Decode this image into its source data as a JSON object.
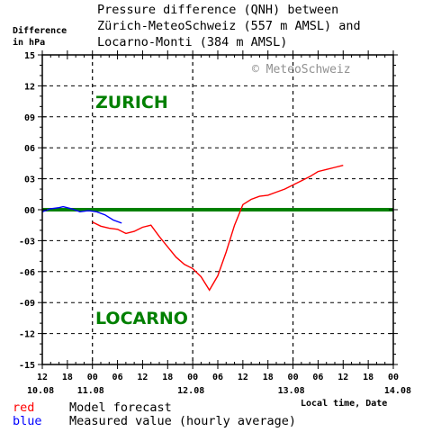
{
  "chart_data": {
    "type": "line",
    "title_lines": [
      "Pressure difference (QNH) between",
      "Zürich-MeteoSchweiz (557 m AMSL) and",
      "Locarno-Monti (384 m AMSL)"
    ],
    "ylabel_lines": [
      "Difference",
      "in hPa"
    ],
    "xlabel": "Local time, Date",
    "copyright": "© MeteoSchweiz",
    "region_labels": {
      "top": "ZURICH",
      "bottom": "LOCARNO"
    },
    "ylim": [
      -15,
      15
    ],
    "yticks": [
      "15",
      "12",
      "09",
      "06",
      "03",
      "00",
      "-03",
      "-06",
      "-09",
      "-12",
      "-15"
    ],
    "xlim_hours": [
      0,
      84
    ],
    "xticks": [
      "12",
      "18",
      "00",
      "06",
      "12",
      "18",
      "00",
      "06",
      "12",
      "18",
      "00",
      "06",
      "12",
      "18",
      "00"
    ],
    "date_labels": [
      "10.08",
      "11.08",
      "12.08",
      "13.08",
      "14.08"
    ],
    "zero_line_color": "#008000",
    "series": [
      {
        "name": "Model forecast",
        "legend_key": "red",
        "color": "#ff0000",
        "points": [
          [
            12,
            -1.2
          ],
          [
            14,
            -1.6
          ],
          [
            16,
            -1.8
          ],
          [
            18,
            -1.9
          ],
          [
            20,
            -2.3
          ],
          [
            22,
            -2.1
          ],
          [
            24,
            -1.7
          ],
          [
            26,
            -1.5
          ],
          [
            28,
            -2.6
          ],
          [
            30,
            -3.6
          ],
          [
            32,
            -4.6
          ],
          [
            34,
            -5.3
          ],
          [
            36,
            -5.7
          ],
          [
            38,
            -6.5
          ],
          [
            40,
            -7.8
          ],
          [
            42,
            -6.4
          ],
          [
            44,
            -4.1
          ],
          [
            46,
            -1.5
          ],
          [
            48,
            0.5
          ],
          [
            50,
            1.0
          ],
          [
            52,
            1.3
          ],
          [
            54,
            1.4
          ],
          [
            56,
            1.7
          ],
          [
            58,
            2.0
          ],
          [
            60,
            2.4
          ],
          [
            62,
            2.8
          ],
          [
            64,
            3.2
          ],
          [
            66,
            3.7
          ],
          [
            68,
            3.9
          ],
          [
            70,
            4.1
          ],
          [
            72,
            4.3
          ]
        ]
      },
      {
        "name": "Measured value (hourly average)",
        "legend_key": "blue",
        "color": "#0000ff",
        "points": [
          [
            0,
            -0.2
          ],
          [
            2,
            0.1
          ],
          [
            4,
            0.2
          ],
          [
            5,
            0.3
          ],
          [
            7,
            0.1
          ],
          [
            9,
            -0.2
          ],
          [
            11,
            -0.1
          ],
          [
            13,
            -0.2
          ],
          [
            15,
            -0.5
          ],
          [
            17,
            -1.0
          ],
          [
            19,
            -1.3
          ]
        ]
      }
    ]
  }
}
